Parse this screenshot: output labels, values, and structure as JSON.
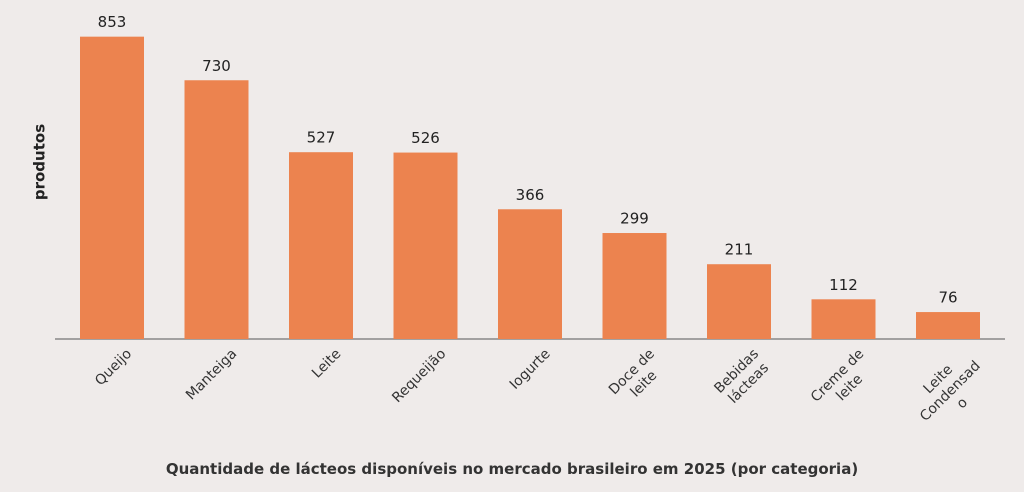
{
  "chart_data": {
    "type": "bar",
    "x_label": "Quantidade de lácteos disponíveis no mercado brasileiro em 2025 (por categoria)",
    "y_label": "produtos",
    "categories": [
      "Queijo",
      "Manteiga",
      "Leite",
      "Requeijão",
      "Iogurte",
      "Doce de\nleite",
      "Bebidas\nlácteas",
      "Creme de\nleite",
      "Leite\nCondensad\no"
    ],
    "values": [
      853,
      730,
      527,
      526,
      366,
      299,
      211,
      112,
      76
    ],
    "color": "#ec834f",
    "ylim": [
      0,
      900
    ]
  }
}
